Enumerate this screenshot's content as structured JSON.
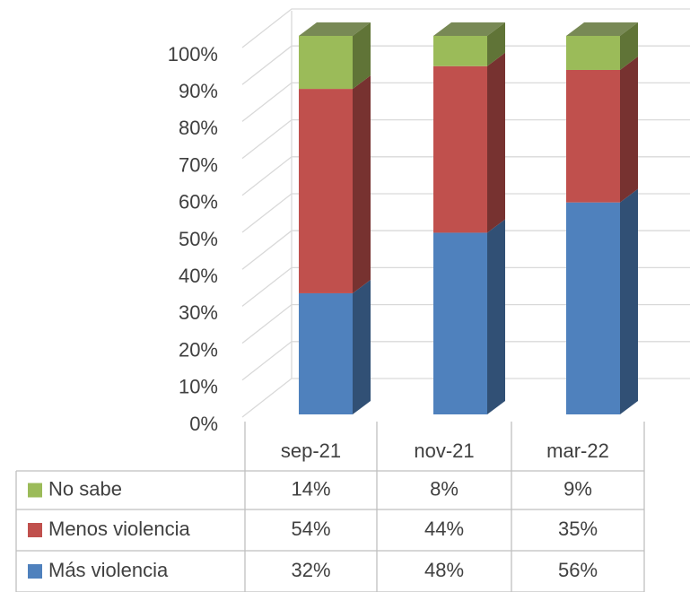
{
  "chart_data": {
    "type": "bar3d-stacked",
    "categories": [
      "sep-21",
      "nov-21",
      "mar-22"
    ],
    "series": [
      {
        "name": "Más violencia",
        "color": "#4f81bd",
        "values": [
          32,
          48,
          56
        ],
        "value_labels": [
          "32%",
          "48%",
          "56%"
        ]
      },
      {
        "name": "Menos violencia",
        "color": "#c0504d",
        "values": [
          54,
          44,
          35
        ],
        "value_labels": [
          "54%",
          "44%",
          "35%"
        ]
      },
      {
        "name": "No sabe",
        "color": "#9bbb59",
        "values": [
          14,
          8,
          9
        ],
        "value_labels": [
          "14%",
          "8%",
          "9%"
        ]
      }
    ],
    "ylim": [
      0,
      100
    ],
    "yticks": [
      {
        "value": 0,
        "label": "0%"
      },
      {
        "value": 10,
        "label": "10%"
      },
      {
        "value": 20,
        "label": "20%"
      },
      {
        "value": 30,
        "label": "30%"
      },
      {
        "value": 40,
        "label": "40%"
      },
      {
        "value": 50,
        "label": "50%"
      },
      {
        "value": 60,
        "label": "60%"
      },
      {
        "value": 70,
        "label": "70%"
      },
      {
        "value": 80,
        "label": "80%"
      },
      {
        "value": 90,
        "label": "90%"
      },
      {
        "value": 100,
        "label": "100%"
      }
    ],
    "grid": true
  }
}
